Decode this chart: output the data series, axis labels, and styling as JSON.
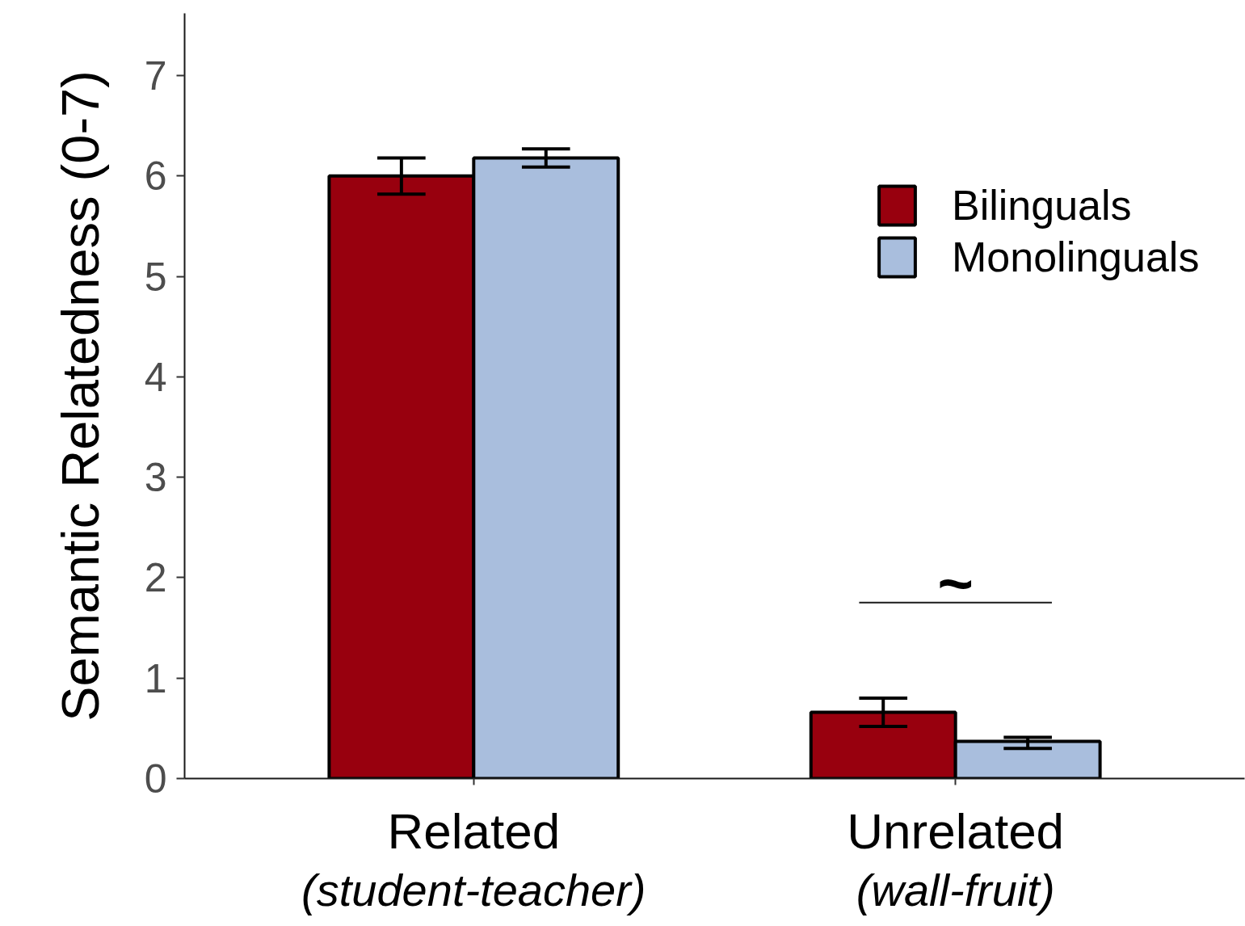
{
  "chart_data": {
    "type": "bar",
    "ylabel": "Semantic Relatedness (0-7)",
    "categories": [
      "Related\n(student-teacher)",
      "Unrelated\n(wall-fruit)"
    ],
    "series": [
      {
        "name": "Bilinguals",
        "color": "#98000e",
        "values": [
          6.0,
          0.66
        ],
        "errors": [
          [
            5.82,
            6.18
          ],
          [
            0.52,
            0.8
          ]
        ]
      },
      {
        "name": "Monolinguals",
        "color": "#a9bedd",
        "values": [
          6.18,
          0.37
        ],
        "errors": [
          [
            6.09,
            6.27
          ],
          [
            0.3,
            0.41
          ]
        ]
      }
    ],
    "ylim": [
      0,
      7.62
    ],
    "yticks": [
      0,
      1,
      2,
      3,
      4,
      5,
      6,
      7
    ],
    "legend": "top right",
    "annotations": [
      "~"
    ]
  }
}
